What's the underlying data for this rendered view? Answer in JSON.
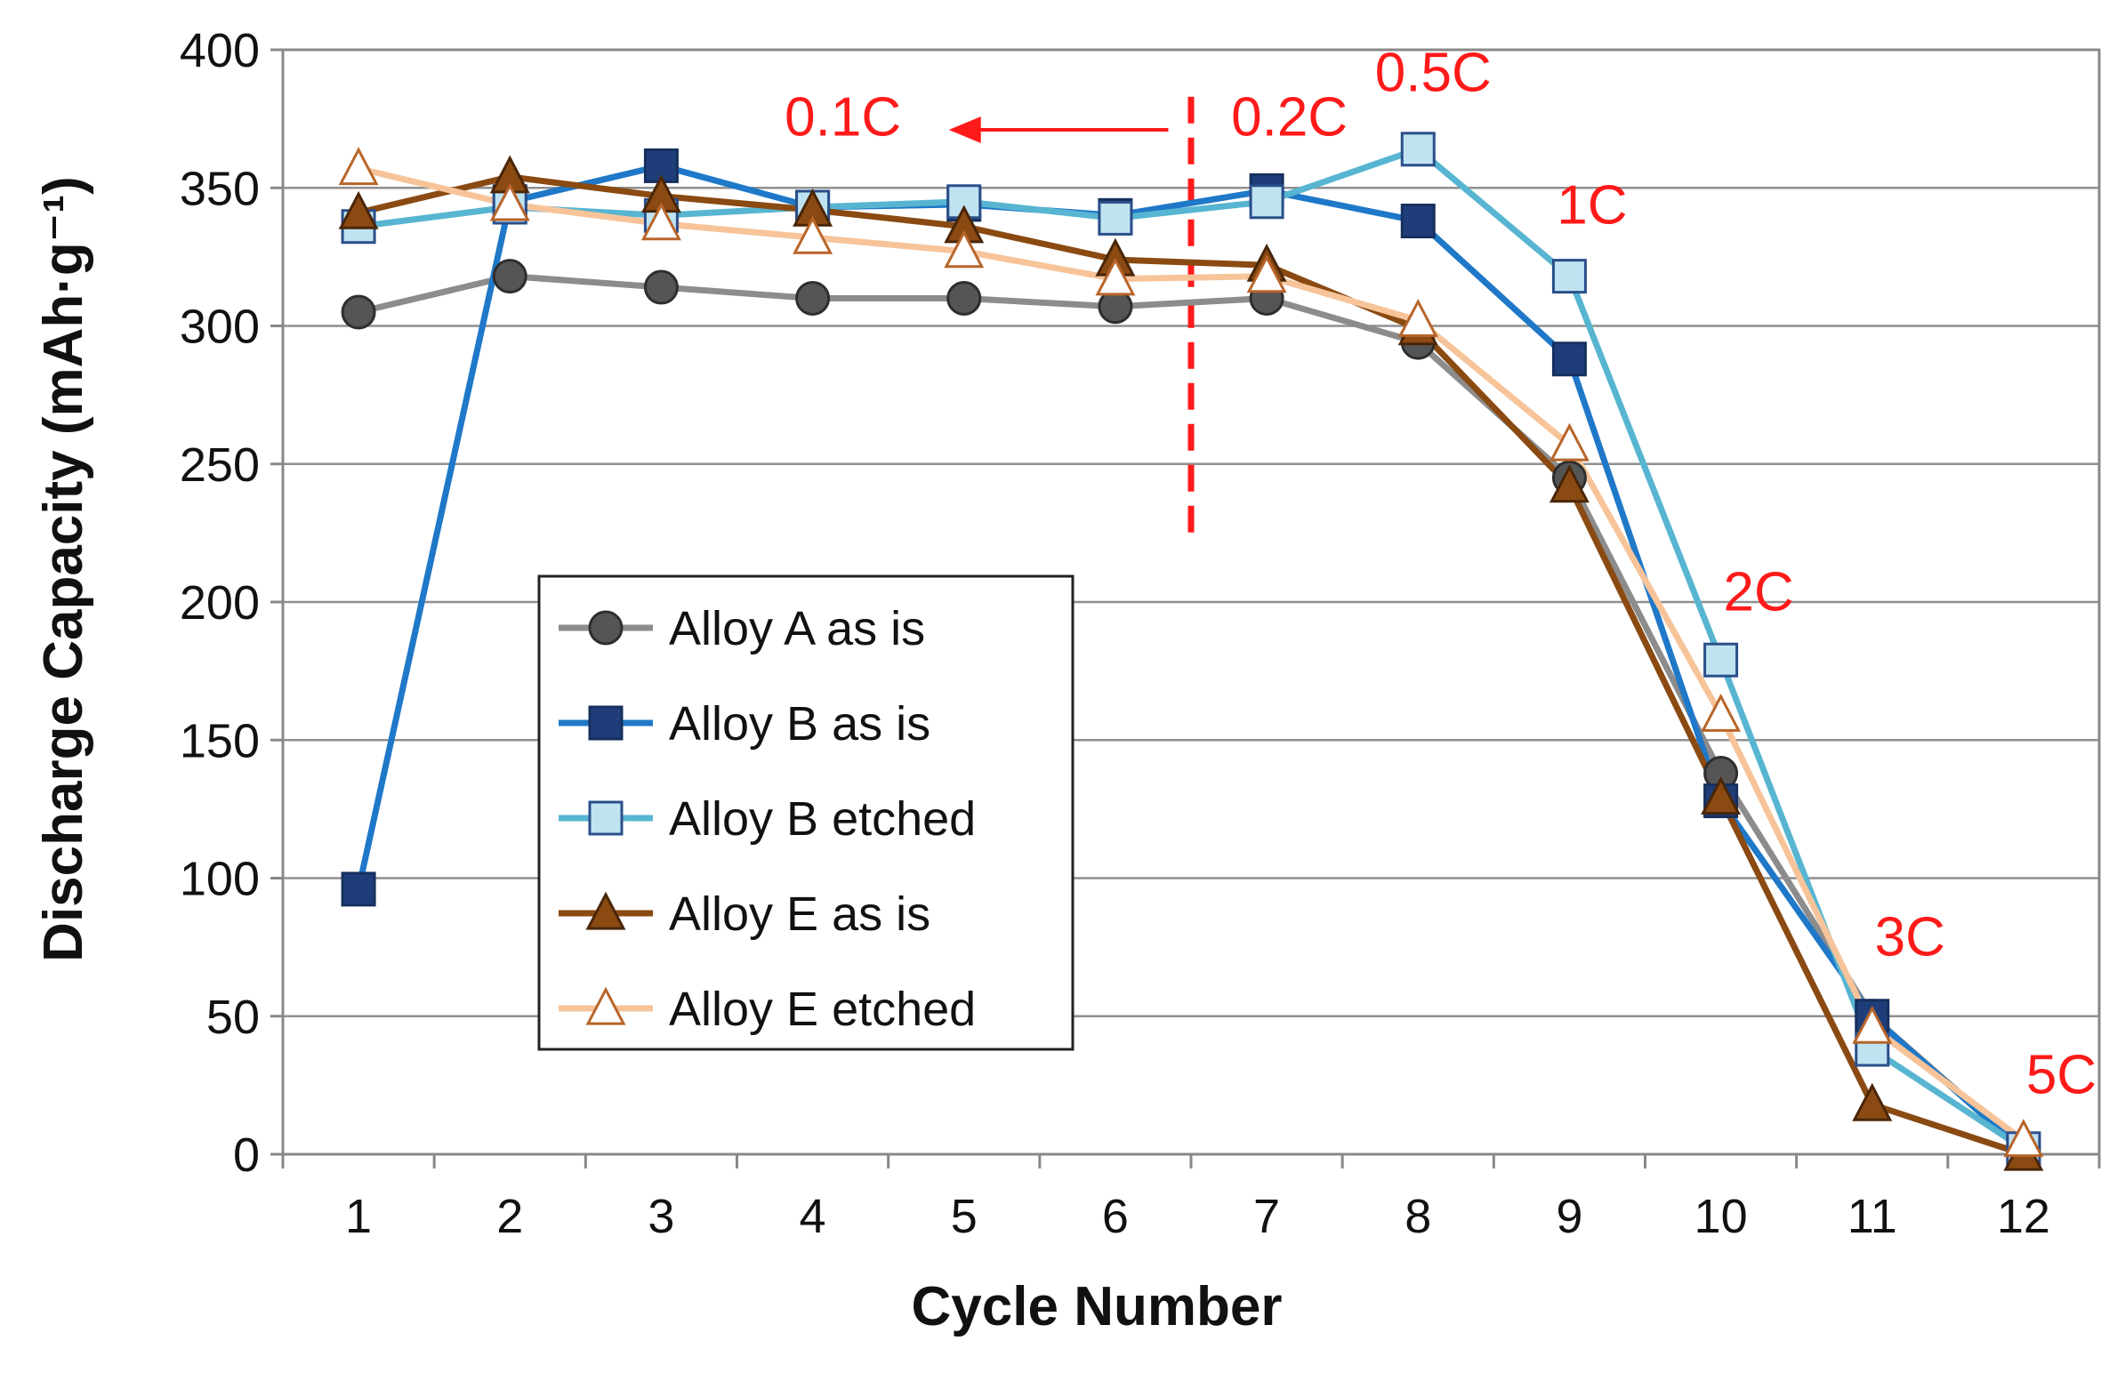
{
  "chart_data": {
    "type": "line",
    "title": "",
    "xlabel": "Cycle Number",
    "ylabel": "Discharge Capacity (mAh·g⁻¹)",
    "x": [
      1,
      2,
      3,
      4,
      5,
      6,
      7,
      8,
      9,
      10,
      11,
      12
    ],
    "x_tick_labels": [
      "1",
      "2",
      "3",
      "4",
      "5",
      "6",
      "7",
      "8",
      "9",
      "10",
      "11",
      "12"
    ],
    "ylim": [
      0,
      400
    ],
    "y_tick_labels": [
      "0",
      "50",
      "100",
      "150",
      "200",
      "250",
      "300",
      "350",
      "400"
    ],
    "grid": "horizontal",
    "legend_position": "center-left",
    "series": [
      {
        "name": "Alloy A as is",
        "marker": "circle",
        "line_color": "#8c8c8c",
        "marker_fill": "#555555",
        "marker_stroke": "#2e2e2e",
        "values": [
          305,
          318,
          314,
          310,
          310,
          307,
          310,
          294,
          245,
          138,
          50,
          2
        ]
      },
      {
        "name": "Alloy B as is",
        "marker": "square",
        "line_color": "#1f78c8",
        "marker_fill": "#1f3d78",
        "marker_stroke": "#16305e",
        "values": [
          96,
          345,
          358,
          343,
          344,
          340,
          349,
          338,
          288,
          128,
          50,
          1
        ]
      },
      {
        "name": "Alloy B etched",
        "marker": "square",
        "line_color": "#57b5d1",
        "marker_fill": "#bfe3f1",
        "marker_stroke": "#2a4f8a",
        "values": [
          336,
          343,
          340,
          343,
          345,
          339,
          345,
          364,
          318,
          179,
          38,
          2
        ]
      },
      {
        "name": "Alloy E as is",
        "marker": "triangle",
        "line_color": "#8a4a12",
        "marker_fill": "#8a4a12",
        "marker_stroke": "#4a2608",
        "values": [
          341,
          354,
          347,
          342,
          336,
          324,
          322,
          299,
          242,
          129,
          18,
          0
        ]
      },
      {
        "name": "Alloy E etched",
        "marker": "triangle",
        "line_color": "#f7c49a",
        "marker_fill": "#ffffff",
        "marker_stroke": "#b8652a",
        "values": [
          357,
          344,
          337,
          332,
          327,
          317,
          318,
          302,
          257,
          159,
          46,
          5
        ]
      }
    ],
    "annotations": [
      {
        "text": "0.1C",
        "x": 4.2,
        "y": 369,
        "color": "#ff1a1a"
      },
      {
        "text": "0.2C",
        "x": 7.15,
        "y": 369,
        "color": "#ff1a1a"
      },
      {
        "text": "0.5C",
        "x": 8.1,
        "y": 385,
        "color": "#ff1a1a"
      },
      {
        "text": "1C",
        "x": 9.15,
        "y": 337,
        "color": "#ff1a1a"
      },
      {
        "text": "2C",
        "x": 10.25,
        "y": 197,
        "color": "#ff1a1a"
      },
      {
        "text": "3C",
        "x": 11.25,
        "y": 72,
        "color": "#ff1a1a"
      },
      {
        "text": "5C",
        "x": 12.25,
        "y": 22,
        "color": "#ff1a1a"
      }
    ],
    "divider": {
      "x": 6.5,
      "y_from": 223,
      "y_to": 383,
      "style": "dashed",
      "color": "#ff1a1a"
    },
    "arrow": {
      "x_from": 6.35,
      "x_to": 4.9,
      "y": 371,
      "color": "#ff1a1a"
    }
  }
}
